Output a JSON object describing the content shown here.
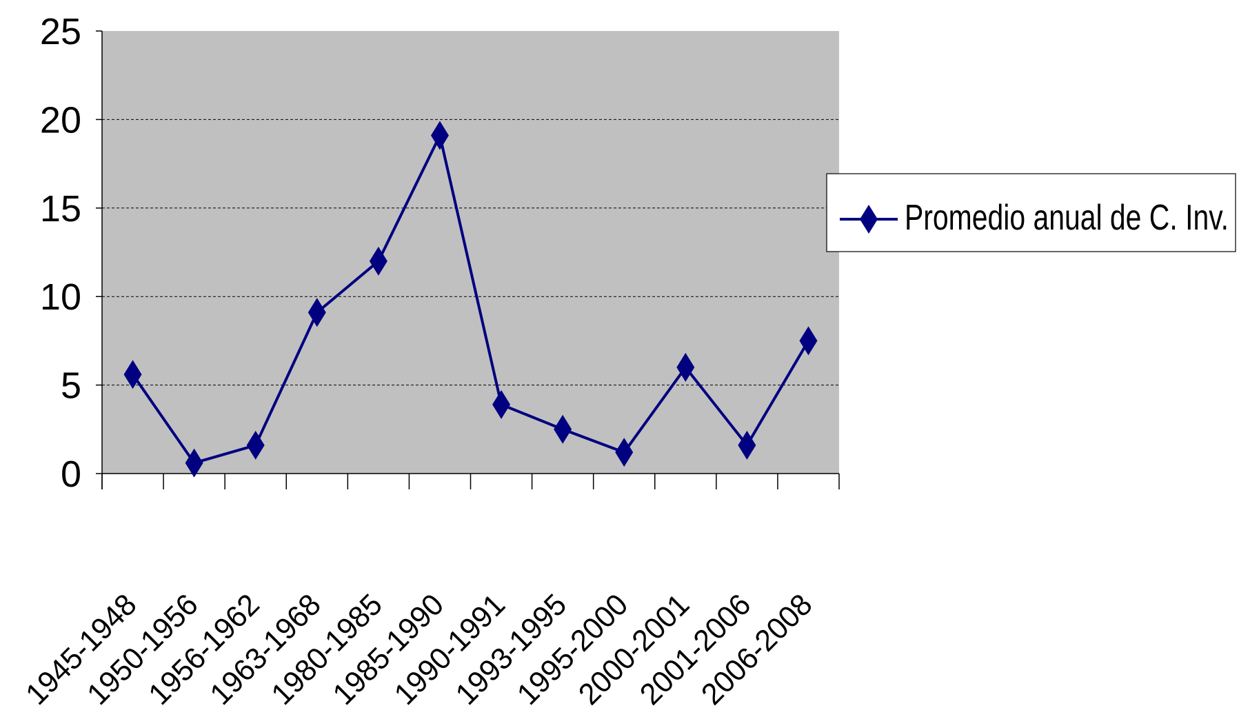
{
  "chart_data": {
    "type": "line",
    "title": "",
    "xlabel": "",
    "ylabel": "",
    "categories": [
      "1945-1948",
      "1950-1956",
      "1956-1962",
      "1963-1968",
      "1980-1985",
      "1985-1990",
      "1990-1991",
      "1993-1995",
      "1995-2000",
      "2000-2001",
      "2001-2006",
      "2006-2008"
    ],
    "series": [
      {
        "name": "Promedio anual de C. Inv.",
        "values": [
          5.6,
          0.6,
          1.6,
          9.1,
          12.0,
          19.1,
          3.9,
          2.5,
          1.2,
          6.0,
          1.6,
          7.5
        ],
        "color": "#000080",
        "marker": "diamond"
      }
    ],
    "ylim": [
      0,
      25
    ],
    "yticks": [
      0,
      5,
      10,
      15,
      20,
      25
    ],
    "grid": "horizontal-dashed",
    "plot_background": "#c0c0c0",
    "legend": "right"
  }
}
